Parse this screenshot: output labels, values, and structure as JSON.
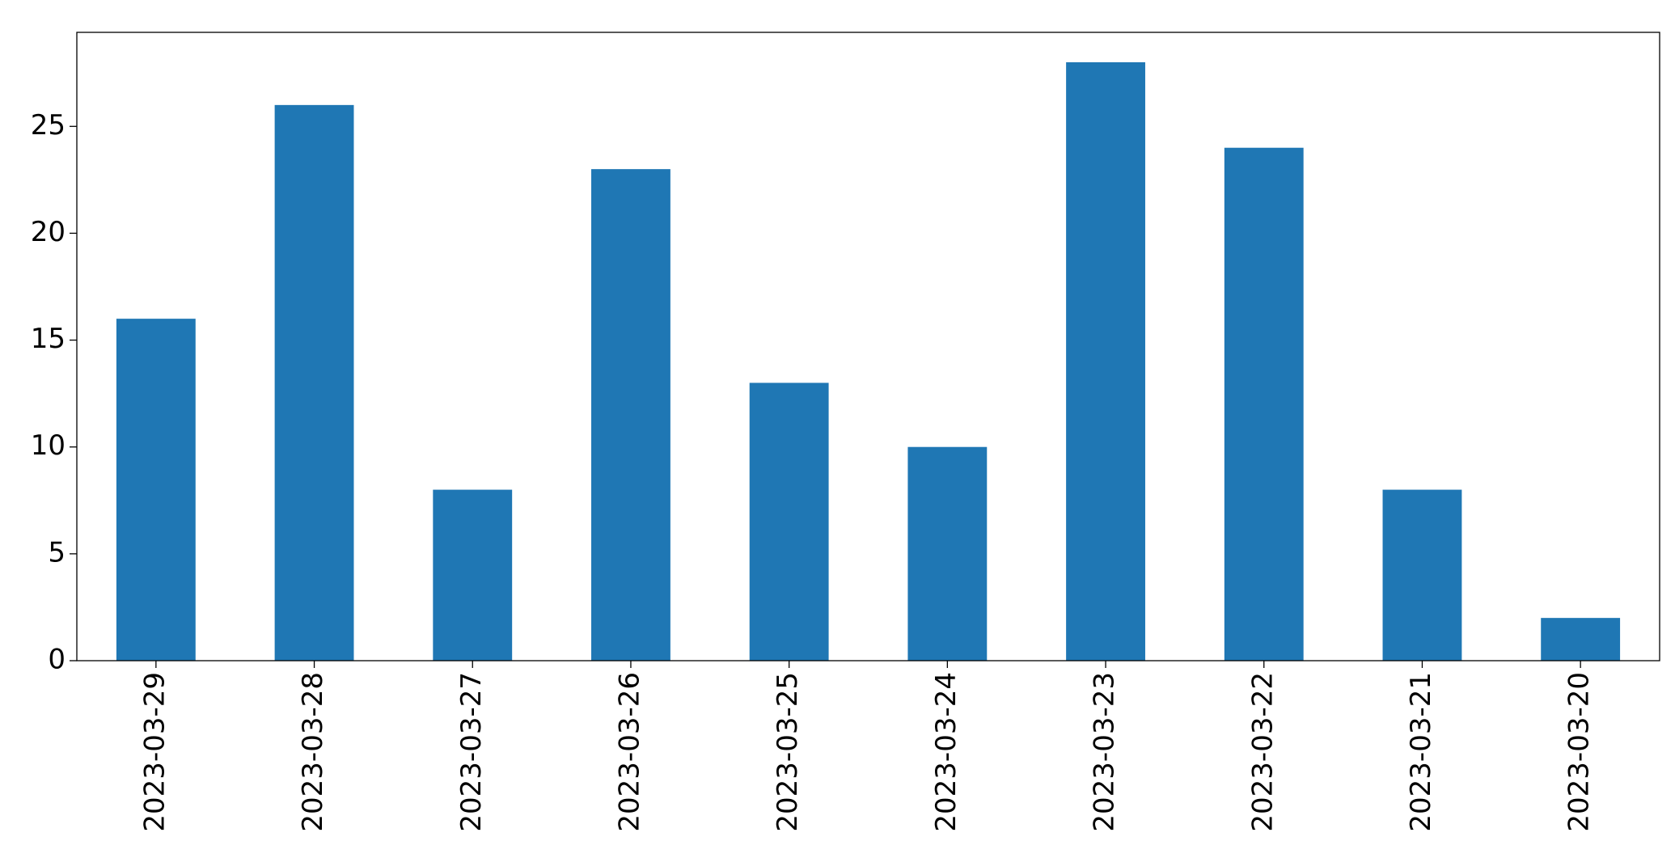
{
  "chart_data": {
    "type": "bar",
    "categories": [
      "2023-03-29",
      "2023-03-28",
      "2023-03-27",
      "2023-03-26",
      "2023-03-25",
      "2023-03-24",
      "2023-03-23",
      "2023-03-22",
      "2023-03-21",
      "2023-03-20"
    ],
    "values": [
      16,
      26,
      8,
      23,
      13,
      10,
      28,
      24,
      8,
      2
    ],
    "color": "#1f77b4",
    "ylim": [
      0,
      29.4
    ],
    "yticks": [
      0,
      5,
      10,
      15,
      20,
      25
    ],
    "grid": false
  }
}
